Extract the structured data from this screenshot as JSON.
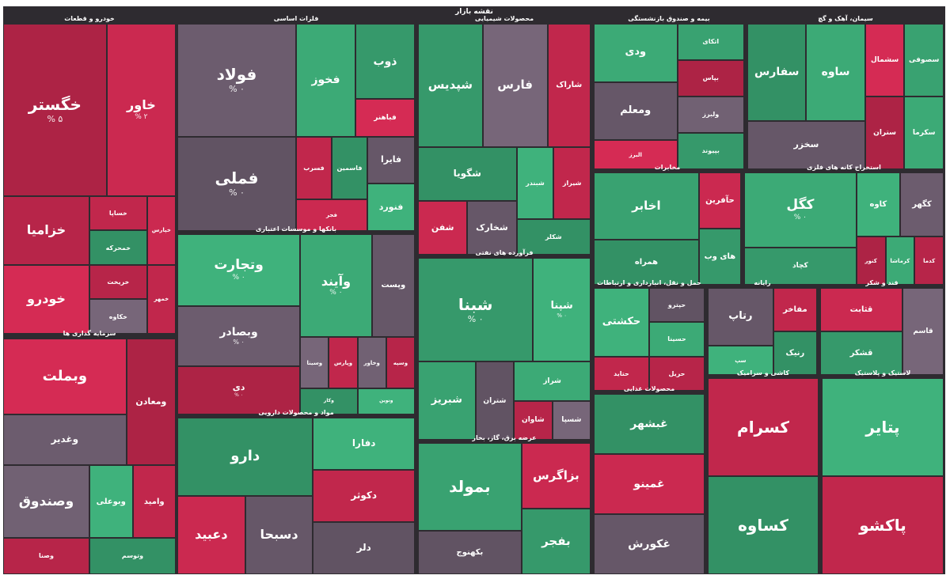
{
  "map_title": "نقشه بازار",
  "chart_data": {
    "type": "heatmap",
    "subtype": "treemap",
    "colors": {
      "positive": "#3aa573",
      "negative": "#c5284e",
      "neutral": "#6e5e70"
    },
    "sectors": [
      {
        "name": "خودرو و قطعات",
        "tiles": [
          {
            "symbol": "خگستر",
            "sign": "-",
            "change": "% ۵",
            "weight": 9
          },
          {
            "symbol": "خاور",
            "sign": "-",
            "change": "% ۲",
            "weight": 6
          },
          {
            "symbol": "خزامیا",
            "sign": "-",
            "change": "",
            "weight": 3
          },
          {
            "symbol": "خودرو",
            "sign": "-",
            "change": "",
            "weight": 3
          },
          {
            "symbol": "خساپا",
            "sign": "-",
            "change": "",
            "weight": 1
          },
          {
            "symbol": "خمحرکه",
            "sign": "+",
            "change": "",
            "weight": 1
          },
          {
            "symbol": "خپارس",
            "sign": "-",
            "change": "",
            "weight": 1
          },
          {
            "symbol": "خریخت",
            "sign": "-",
            "change": "",
            "weight": 1
          },
          {
            "symbol": "خکاوه",
            "sign": "0",
            "change": "",
            "weight": 1
          },
          {
            "symbol": "خمهر",
            "sign": "-",
            "change": "",
            "weight": 1
          }
        ]
      },
      {
        "name": "فلزات اساسی",
        "tiles": [
          {
            "symbol": "فولاد",
            "sign": "0",
            "change": "% ۰",
            "weight": 6
          },
          {
            "symbol": "فملی",
            "sign": "0",
            "change": "% ۰",
            "weight": 5
          },
          {
            "symbol": "فخوز",
            "sign": "+",
            "change": "",
            "weight": 3
          },
          {
            "symbol": "ذوب",
            "sign": "+",
            "change": "",
            "weight": 2
          },
          {
            "symbol": "فباهنر",
            "sign": "-",
            "change": "",
            "weight": 1
          },
          {
            "symbol": "فسرب",
            "sign": "-",
            "change": "",
            "weight": 1
          },
          {
            "symbol": "فاسمین",
            "sign": "+",
            "change": "",
            "weight": 1
          },
          {
            "symbol": "فجر",
            "sign": "-",
            "change": "",
            "weight": 1
          },
          {
            "symbol": "فایرا",
            "sign": "0",
            "change": "",
            "weight": 1
          },
          {
            "symbol": "فنورد",
            "sign": "+",
            "change": "",
            "weight": 1
          }
        ]
      },
      {
        "name": "سرمایه گذاری ها",
        "tiles": [
          {
            "symbol": "وبملت",
            "sign": "-",
            "change": "",
            "weight": 3
          },
          {
            "symbol": "وغدیر",
            "sign": "0",
            "change": "",
            "weight": 2
          },
          {
            "symbol": "ومعادن",
            "sign": "-",
            "change": "",
            "weight": 2
          },
          {
            "symbol": "وصندوق",
            "sign": "0",
            "change": "",
            "weight": 2
          },
          {
            "symbol": "وصنا",
            "sign": "-",
            "change": "",
            "weight": 1
          },
          {
            "symbol": "وبوعلی",
            "sign": "+",
            "change": "",
            "weight": 1
          },
          {
            "symbol": "وامید",
            "sign": "-",
            "change": "",
            "weight": 1
          },
          {
            "symbol": "وتوسم",
            "sign": "+",
            "change": "",
            "weight": 1
          }
        ]
      },
      {
        "name": "محصولات شیمیایی",
        "tiles": [
          {
            "symbol": "شپدیس",
            "sign": "+",
            "change": "",
            "weight": 3
          },
          {
            "symbol": "فارس",
            "sign": "0",
            "change": "",
            "weight": 3
          },
          {
            "symbol": "شاراک",
            "sign": "-",
            "change": "",
            "weight": 2
          },
          {
            "symbol": "شگویا",
            "sign": "+",
            "change": "",
            "weight": 2
          },
          {
            "symbol": "شفن",
            "sign": "-",
            "change": "",
            "weight": 1
          },
          {
            "symbol": "شخارک",
            "sign": "0",
            "change": "",
            "weight": 1
          },
          {
            "symbol": "شبندر",
            "sign": "+",
            "change": "",
            "weight": 1
          },
          {
            "symbol": "شیراز",
            "sign": "-",
            "change": "",
            "weight": 1
          },
          {
            "symbol": "شکلر",
            "sign": "+",
            "change": "",
            "weight": 1
          }
        ]
      },
      {
        "name": "بیمه و صندوق بازنشستگی",
        "tiles": [
          {
            "symbol": "ودی",
            "sign": "+",
            "change": "",
            "weight": 2
          },
          {
            "symbol": "ومعلم",
            "sign": "0",
            "change": "",
            "weight": 2
          },
          {
            "symbol": "البرز",
            "sign": "-",
            "change": "",
            "weight": 1
          },
          {
            "symbol": "اتکای",
            "sign": "+",
            "change": "",
            "weight": 1
          },
          {
            "symbol": "بپاس",
            "sign": "-",
            "change": "",
            "weight": 1
          },
          {
            "symbol": "ولبرز",
            "sign": "0",
            "change": "",
            "weight": 1
          },
          {
            "symbol": "بپیوند",
            "sign": "+",
            "change": "",
            "weight": 1
          }
        ]
      },
      {
        "name": "سیمان، آهک و گچ",
        "tiles": [
          {
            "symbol": "سفارس",
            "sign": "+",
            "change": "",
            "weight": 2
          },
          {
            "symbol": "ساوه",
            "sign": "+",
            "change": "",
            "weight": 2
          },
          {
            "symbol": "سخزر",
            "sign": "0",
            "change": "",
            "weight": 2
          },
          {
            "symbol": "سشمال",
            "sign": "-",
            "change": "",
            "weight": 1
          },
          {
            "symbol": "سصوفی",
            "sign": "+",
            "change": "",
            "weight": 1
          },
          {
            "symbol": "ستران",
            "sign": "-",
            "change": "",
            "weight": 1
          },
          {
            "symbol": "سکرما",
            "sign": "+",
            "change": "",
            "weight": 1
          }
        ]
      },
      {
        "name": "مخابرات",
        "tiles": [
          {
            "symbol": "اخابر",
            "sign": "+",
            "change": "",
            "weight": 3
          },
          {
            "symbol": "همراه",
            "sign": "+",
            "change": "",
            "weight": 2
          },
          {
            "symbol": "حآفرین",
            "sign": "-",
            "change": "",
            "weight": 1
          },
          {
            "symbol": "های وب",
            "sign": "+",
            "change": "",
            "weight": 1
          }
        ]
      },
      {
        "name": "بانکها و موسسات اعتباری",
        "tiles": [
          {
            "symbol": "وتجارت",
            "sign": "+",
            "change": "% ۰",
            "weight": 6
          },
          {
            "symbol": "وبصادر",
            "sign": "0",
            "change": "% ۰",
            "weight": 5
          },
          {
            "symbol": "دی",
            "sign": "-",
            "change": "% ۰",
            "weight": 4
          },
          {
            "symbol": "وآیند",
            "sign": "+",
            "change": "% ۰",
            "weight": 5
          },
          {
            "symbol": "وپست",
            "sign": "0",
            "change": "",
            "weight": 3
          },
          {
            "symbol": "وسینا",
            "sign": "0",
            "change": "",
            "weight": 1
          },
          {
            "symbol": "وپارس",
            "sign": "-",
            "change": "",
            "weight": 1
          },
          {
            "symbol": "وکار",
            "sign": "+",
            "change": "",
            "weight": 1
          },
          {
            "symbol": "وخاور",
            "sign": "0",
            "change": "",
            "weight": 1
          },
          {
            "symbol": "وسپه",
            "sign": "-",
            "change": "",
            "weight": 1
          },
          {
            "symbol": "ونوین",
            "sign": "+",
            "change": "",
            "weight": 1
          }
        ]
      },
      {
        "name": "فرآورده های نفتی",
        "tiles": [
          {
            "symbol": "شبنا",
            "sign": "+",
            "change": "% ۰",
            "weight": 8
          },
          {
            "symbol": "شپنا",
            "sign": "+",
            "change": "% ۰",
            "weight": 4
          },
          {
            "symbol": "شبریز",
            "sign": "+",
            "change": "",
            "weight": 3
          },
          {
            "symbol": "شتران",
            "sign": "0",
            "change": "",
            "weight": 2
          },
          {
            "symbol": "شراز",
            "sign": "+",
            "change": "",
            "weight": 2
          },
          {
            "symbol": "شاوان",
            "sign": "-",
            "change": "",
            "weight": 1
          },
          {
            "symbol": "شسپا",
            "sign": "0",
            "change": "",
            "weight": 1
          }
        ]
      },
      {
        "name": "استخراج کانه های فلزی",
        "tiles": [
          {
            "symbol": "کگل",
            "sign": "+",
            "change": "% ۰",
            "weight": 6
          },
          {
            "symbol": "کچاد",
            "sign": "+",
            "change": "",
            "weight": 3
          },
          {
            "symbol": "کاوه",
            "sign": "+",
            "change": "",
            "weight": 2
          },
          {
            "symbol": "کگهر",
            "sign": "0",
            "change": "",
            "weight": 2
          },
          {
            "symbol": "کنور",
            "sign": "-",
            "change": "",
            "weight": 1
          },
          {
            "symbol": "کرماشا",
            "sign": "+",
            "change": "",
            "weight": 1
          },
          {
            "symbol": "کدما",
            "sign": "-",
            "change": "",
            "weight": 1
          }
        ]
      },
      {
        "name": "مواد و محصولات دارویی",
        "tiles": [
          {
            "symbol": "دارو",
            "sign": "+",
            "change": "",
            "weight": 2
          },
          {
            "symbol": "دعبید",
            "sign": "-",
            "change": "",
            "weight": 1
          },
          {
            "symbol": "دسبحا",
            "sign": "0",
            "change": "",
            "weight": 1
          },
          {
            "symbol": "دفارا",
            "sign": "+",
            "change": "",
            "weight": 1
          },
          {
            "symbol": "دکوثر",
            "sign": "-",
            "change": "",
            "weight": 1
          },
          {
            "symbol": "دلر",
            "sign": "0",
            "change": "",
            "weight": 1
          }
        ]
      },
      {
        "name": "عرضه برق، گاز، بخار",
        "tiles": [
          {
            "symbol": "بمولد",
            "sign": "+",
            "change": "",
            "weight": 2
          },
          {
            "symbol": "بکهنوج",
            "sign": "0",
            "change": "",
            "weight": 1
          },
          {
            "symbol": "بزاگرس",
            "sign": "-",
            "change": "",
            "weight": 1
          },
          {
            "symbol": "بفجر",
            "sign": "+",
            "change": "",
            "weight": 1
          }
        ]
      },
      {
        "name": "حمل و نقل، انبارداری و ارتباطات",
        "tiles": [
          {
            "symbol": "حکشتی",
            "sign": "+",
            "change": "",
            "weight": 2
          },
          {
            "symbol": "حتاید",
            "sign": "-",
            "change": "",
            "weight": 1
          },
          {
            "symbol": "حپترو",
            "sign": "0",
            "change": "",
            "weight": 1
          },
          {
            "symbol": "حسینا",
            "sign": "+",
            "change": "",
            "weight": 1
          },
          {
            "symbol": "حریل",
            "sign": "-",
            "change": "",
            "weight": 1
          }
        ]
      },
      {
        "name": "رایانه",
        "tiles": [
          {
            "symbol": "رتاپ",
            "sign": "0",
            "change": "",
            "weight": 2
          },
          {
            "symbol": "سپ",
            "sign": "+",
            "change": "",
            "weight": 1
          },
          {
            "symbol": "مفاخر",
            "sign": "-",
            "change": "",
            "weight": 1
          },
          {
            "symbol": "رنیک",
            "sign": "+",
            "change": "",
            "weight": 1
          }
        ]
      },
      {
        "name": "قند و شکر",
        "tiles": [
          {
            "symbol": "قثابت",
            "sign": "-",
            "change": "",
            "weight": 1
          },
          {
            "symbol": "قشکر",
            "sign": "+",
            "change": "",
            "weight": 1
          },
          {
            "symbol": "قاسم",
            "sign": "0",
            "change": "",
            "weight": 1
          }
        ]
      },
      {
        "name": "محصولات غذایی",
        "tiles": [
          {
            "symbol": "غبشهر",
            "sign": "+",
            "change": "",
            "weight": 1
          },
          {
            "symbol": "غمینو",
            "sign": "-",
            "change": "",
            "weight": 1
          },
          {
            "symbol": "غکورش",
            "sign": "0",
            "change": "",
            "weight": 1
          }
        ]
      },
      {
        "name": "کاشی و سرامیک",
        "tiles": [
          {
            "symbol": "کسرام",
            "sign": "-",
            "change": "",
            "weight": 1
          },
          {
            "symbol": "کساوه",
            "sign": "+",
            "change": "",
            "weight": 1
          }
        ]
      },
      {
        "name": "لاستیک و پلاستیک",
        "tiles": [
          {
            "symbol": "پتایر",
            "sign": "+",
            "change": "",
            "weight": 1
          },
          {
            "symbol": "پاکشو",
            "sign": "-",
            "change": "",
            "weight": 1
          }
        ]
      }
    ]
  }
}
